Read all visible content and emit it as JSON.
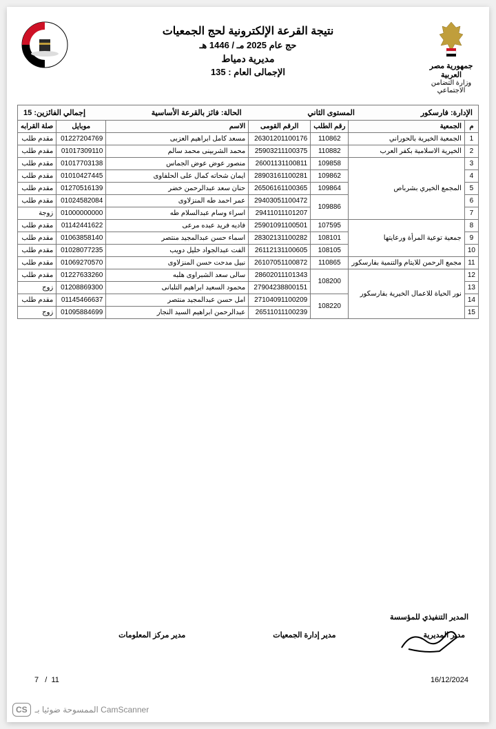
{
  "header": {
    "title_main": "نتيجة القرعة الإلكترونية لحج الجمعيات",
    "title_sub": "حج عام 2025 مـ / 1446 هـ",
    "directorate": "مديرية دمياط",
    "total_label": "الإجمالى العام :",
    "total_value": "135",
    "gov_title": "جمهورية مصر العربية",
    "ministry": "وزارة التضامن الاجتماعي"
  },
  "info_bar": {
    "admin_label": "الإدارة:",
    "admin_value": "فارسكور",
    "level_label": "المستوى الثاني",
    "status_label": "الحالة:",
    "status_value": "فائز بالقرعة الأساسية",
    "winners_label": "إجمالي الفائزين:",
    "winners_value": "15"
  },
  "table": {
    "columns": [
      "م",
      "الجمعية",
      "رقم الطلب",
      "الرقم القومى",
      "الاسم",
      "موبايل",
      "صلة القرابه"
    ],
    "rows": [
      {
        "m": "1",
        "assoc": "الجمعية الخيرية بالحوراني",
        "req": "110862",
        "nid": "26301201100176",
        "name": "مسعد كامل ابراهيم العزبى",
        "mob": "01227204769",
        "rel": "مقدم طلب",
        "assoc_rowspan": 1,
        "req_rowspan": 1
      },
      {
        "m": "2",
        "assoc": "الخيرية الاسلامية بكفر العرب",
        "req": "110882",
        "nid": "25903211100375",
        "name": "محمد الشربينى محمد سالم",
        "mob": "01017309110",
        "rel": "مقدم طلب",
        "assoc_rowspan": 1,
        "req_rowspan": 1
      },
      {
        "m": "3",
        "assoc": "المجمع الخيري بشرباص",
        "req": "109858",
        "nid": "26001131100811",
        "name": "منصور عوض عوض الجماس",
        "mob": "01017703138",
        "rel": "مقدم طلب",
        "assoc_rowspan": 5,
        "req_rowspan": 1
      },
      {
        "m": "4",
        "req": "109862",
        "nid": "28903161100281",
        "name": "ايمان شحاته كمال على الحلفاوى",
        "mob": "01010427445",
        "rel": "مقدم طلب",
        "req_rowspan": 1
      },
      {
        "m": "5",
        "req": "109864",
        "nid": "26506161100365",
        "name": "حنان سعد عبدالرحمن خضر",
        "mob": "01270516139",
        "rel": "مقدم طلب",
        "req_rowspan": 1
      },
      {
        "m": "6",
        "req": "109886",
        "nid": "29403051100472",
        "name": "عمر احمد طه المنزلاوى",
        "mob": "01024582084",
        "rel": "مقدم طلب",
        "req_rowspan": 2
      },
      {
        "m": "7",
        "nid": "29411011101207",
        "name": "اسراء وسام عبدالسلام طه",
        "mob": "01000000000",
        "rel": "زوجة"
      },
      {
        "m": "8",
        "assoc": "جمعية توعية المرأة ورعايتها",
        "req": "107595",
        "nid": "25901091100501",
        "name": "فاديه فريد عبده مرعى",
        "mob": "01142441622",
        "rel": "مقدم طلب",
        "assoc_rowspan": 3,
        "req_rowspan": 1
      },
      {
        "m": "9",
        "req": "108101",
        "nid": "28302131100282",
        "name": "اسماء حسن عبدالمجيد منتصر",
        "mob": "01063858140",
        "rel": "مقدم طلب",
        "req_rowspan": 1
      },
      {
        "m": "10",
        "req": "108105",
        "nid": "26112131100605",
        "name": "الفت عبدالجواد خليل دويب",
        "mob": "01028077235",
        "rel": "مقدم طلب",
        "req_rowspan": 1
      },
      {
        "m": "11",
        "assoc": "مجمع الرحمن للايتام والتنمية بفارسكور",
        "req": "110865",
        "nid": "26107051100872",
        "name": "نبيل مدحت حسن المنزلاوى",
        "mob": "01069270570",
        "rel": "مقدم طلب",
        "assoc_rowspan": 1,
        "req_rowspan": 1
      },
      {
        "m": "12",
        "assoc": "نور الحياة للاعمال الخيرية بفارسكور",
        "req": "108200",
        "nid": "28602011101343",
        "name": "سالى سعد الشبراوى هلبه",
        "mob": "01227633260",
        "rel": "مقدم طلب",
        "assoc_rowspan": 4,
        "req_rowspan": 2
      },
      {
        "m": "13",
        "nid": "27904238800151",
        "name": "محمود السعيد ابراهيم التلبانى",
        "mob": "01208869300",
        "rel": "زوج"
      },
      {
        "m": "14",
        "req": "108220",
        "nid": "27104091100209",
        "name": "امل حسن عبدالمجيد منتصر",
        "mob": "01145466637",
        "rel": "مقدم طلب",
        "req_rowspan": 2
      },
      {
        "m": "15",
        "nid": "26511011100239",
        "name": "عبدالرحمن ابراهيم السيد النجار",
        "mob": "01095884699",
        "rel": "زوج"
      }
    ]
  },
  "signatures": {
    "s1": "مدير المديرية",
    "s2": "مدير إدارة الجمعيات",
    "s3": "مدير مركز المعلومات",
    "exec": "المدير التنفيذي للمؤسسة"
  },
  "footer": {
    "date": "16/12/2024",
    "page_current": "7",
    "page_sep": "/",
    "page_total": "11",
    "camscanner": "الممسوحة ضوئيا بـ CamScanner",
    "cs_badge": "CS"
  },
  "colors": {
    "border": "#777777",
    "text": "#000000",
    "bg": "#ffffff",
    "flag_red": "#ce1126",
    "flag_black": "#000000",
    "gold": "#c09e3b"
  }
}
